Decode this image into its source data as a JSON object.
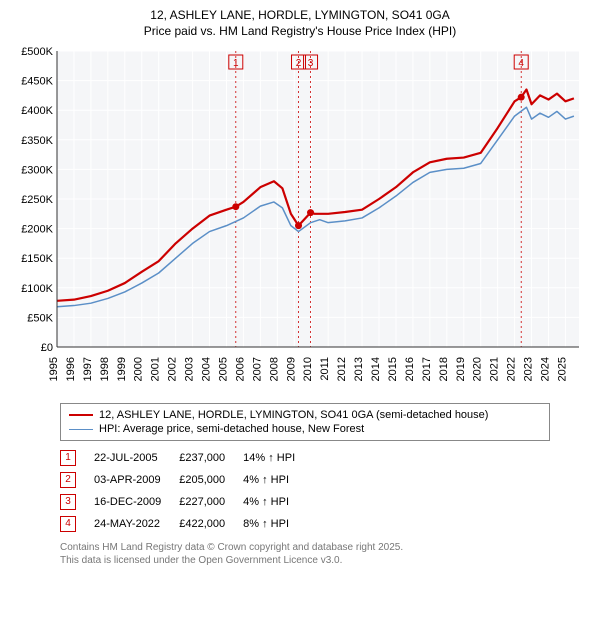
{
  "title_line1": "12, ASHLEY LANE, HORDLE, LYMINGTON, SO41 0GA",
  "title_line2": "Price paid vs. HM Land Registry's House Price Index (HPI)",
  "chart": {
    "type": "line",
    "background_color": "#f5f6f8",
    "gridline_color": "#ffffff",
    "axis_color": "#333333",
    "ymin": 0,
    "ymax": 500000,
    "ytick_step": 50000,
    "ytick_labels": [
      "£0",
      "£50K",
      "£100K",
      "£150K",
      "£200K",
      "£250K",
      "£300K",
      "£350K",
      "£400K",
      "£450K",
      "£500K"
    ],
    "xmin": 1995,
    "xmax": 2025.8,
    "xtick_step": 1,
    "xtick_labels": [
      "1995",
      "1996",
      "1997",
      "1998",
      "1999",
      "2000",
      "2001",
      "2002",
      "2003",
      "2004",
      "2005",
      "2006",
      "2007",
      "2008",
      "2009",
      "2010",
      "2011",
      "2012",
      "2013",
      "2014",
      "2015",
      "2016",
      "2017",
      "2018",
      "2019",
      "2020",
      "2021",
      "2022",
      "2023",
      "2024",
      "2025"
    ],
    "marker_line_color": "#cc0000",
    "marker_line_dash": "2,3",
    "series": [
      {
        "name": "12, ASHLEY LANE, HORDLE, LYMINGTON, SO41 0GA (semi-detached house)",
        "color": "#cc0000",
        "width": 2.2,
        "points": [
          [
            1995,
            78000
          ],
          [
            1996,
            80000
          ],
          [
            1997,
            86000
          ],
          [
            1998,
            95000
          ],
          [
            1999,
            108000
          ],
          [
            2000,
            127000
          ],
          [
            2001,
            145000
          ],
          [
            2002,
            175000
          ],
          [
            2003,
            200000
          ],
          [
            2004,
            222000
          ],
          [
            2005,
            232000
          ],
          [
            2005.55,
            237000
          ],
          [
            2006,
            245000
          ],
          [
            2007,
            270000
          ],
          [
            2007.8,
            280000
          ],
          [
            2008.3,
            268000
          ],
          [
            2008.8,
            225000
          ],
          [
            2009.25,
            205000
          ],
          [
            2009.96,
            227000
          ],
          [
            2010.2,
            225000
          ],
          [
            2011,
            225000
          ],
          [
            2012,
            228000
          ],
          [
            2013,
            232000
          ],
          [
            2014,
            250000
          ],
          [
            2015,
            270000
          ],
          [
            2016,
            295000
          ],
          [
            2017,
            312000
          ],
          [
            2018,
            318000
          ],
          [
            2019,
            320000
          ],
          [
            2020,
            328000
          ],
          [
            2021,
            370000
          ],
          [
            2022,
            415000
          ],
          [
            2022.39,
            422000
          ],
          [
            2022.7,
            435000
          ],
          [
            2023,
            410000
          ],
          [
            2023.5,
            425000
          ],
          [
            2024,
            418000
          ],
          [
            2024.5,
            428000
          ],
          [
            2025,
            415000
          ],
          [
            2025.5,
            420000
          ]
        ]
      },
      {
        "name": "HPI: Average price, semi-detached house, New Forest",
        "color": "#5b8fc7",
        "width": 1.5,
        "points": [
          [
            1995,
            68000
          ],
          [
            1996,
            70000
          ],
          [
            1997,
            74000
          ],
          [
            1998,
            82000
          ],
          [
            1999,
            93000
          ],
          [
            2000,
            108000
          ],
          [
            2001,
            125000
          ],
          [
            2002,
            150000
          ],
          [
            2003,
            175000
          ],
          [
            2004,
            195000
          ],
          [
            2005,
            205000
          ],
          [
            2006,
            218000
          ],
          [
            2007,
            238000
          ],
          [
            2007.8,
            245000
          ],
          [
            2008.3,
            235000
          ],
          [
            2008.8,
            205000
          ],
          [
            2009.25,
            195000
          ],
          [
            2009.96,
            210000
          ],
          [
            2010.5,
            215000
          ],
          [
            2011,
            210000
          ],
          [
            2012,
            213000
          ],
          [
            2013,
            218000
          ],
          [
            2014,
            235000
          ],
          [
            2015,
            255000
          ],
          [
            2016,
            278000
          ],
          [
            2017,
            295000
          ],
          [
            2018,
            300000
          ],
          [
            2019,
            302000
          ],
          [
            2020,
            310000
          ],
          [
            2021,
            350000
          ],
          [
            2022,
            390000
          ],
          [
            2022.7,
            405000
          ],
          [
            2023,
            385000
          ],
          [
            2023.5,
            395000
          ],
          [
            2024,
            388000
          ],
          [
            2024.5,
            398000
          ],
          [
            2025,
            385000
          ],
          [
            2025.5,
            390000
          ]
        ]
      }
    ],
    "markers": [
      {
        "id": "1",
        "x": 2005.55,
        "y": 237000
      },
      {
        "id": "2",
        "x": 2009.25,
        "y": 205000
      },
      {
        "id": "3",
        "x": 2009.96,
        "y": 227000
      },
      {
        "id": "4",
        "x": 2022.39,
        "y": 422000
      }
    ]
  },
  "legend": {
    "items": [
      {
        "color": "#cc0000",
        "width": 2.2,
        "label": "12, ASHLEY LANE, HORDLE, LYMINGTON, SO41 0GA (semi-detached house)"
      },
      {
        "color": "#5b8fc7",
        "width": 1.5,
        "label": "HPI: Average price, semi-detached house, New Forest"
      }
    ]
  },
  "sales": [
    {
      "id": "1",
      "date": "22-JUL-2005",
      "price": "£237,000",
      "diff": "14% ↑ HPI"
    },
    {
      "id": "2",
      "date": "03-APR-2009",
      "price": "£205,000",
      "diff": "4% ↑ HPI"
    },
    {
      "id": "3",
      "date": "16-DEC-2009",
      "price": "£227,000",
      "diff": "4% ↑ HPI"
    },
    {
      "id": "4",
      "date": "24-MAY-2022",
      "price": "£422,000",
      "diff": "8% ↑ HPI"
    }
  ],
  "footer_line1": "Contains HM Land Registry data © Crown copyright and database right 2025.",
  "footer_line2": "This data is licensed under the Open Government Licence v3.0."
}
